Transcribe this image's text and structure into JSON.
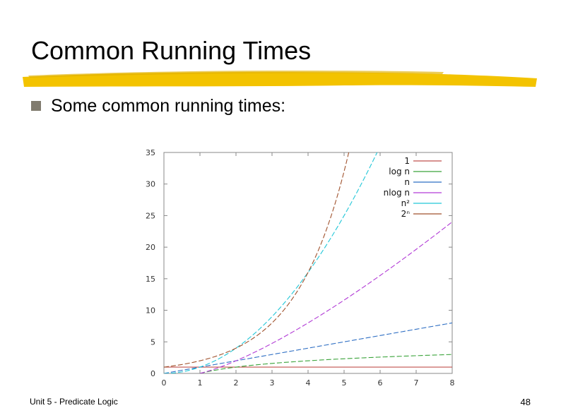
{
  "slide": {
    "title": "Common Running Times",
    "bullet": "Some common running times:",
    "footer_left": "Unit 5 - Predicate Logic",
    "page_number": "48",
    "accent_color": "#f3c300"
  },
  "chart_data": {
    "type": "line",
    "title": "",
    "xlabel": "",
    "ylabel": "",
    "xlim": [
      0,
      8
    ],
    "ylim": [
      0,
      35
    ],
    "x_ticks": [
      "0",
      "1",
      "2",
      "3",
      "4",
      "5",
      "6",
      "7",
      "8"
    ],
    "y_ticks": [
      "0",
      "5",
      "10",
      "15",
      "20",
      "25",
      "30",
      "35"
    ],
    "grid": false,
    "legend_position": "top-right",
    "series": [
      {
        "name": "1",
        "color": "#c0504d",
        "x": [
          0,
          8
        ],
        "y": [
          1,
          1
        ]
      },
      {
        "name": "log n",
        "color": "#3aa33a",
        "x": [
          1,
          2,
          3,
          4,
          5,
          6,
          7,
          8
        ],
        "y": [
          0,
          1,
          1.58,
          2,
          2.32,
          2.58,
          2.81,
          3
        ]
      },
      {
        "name": "n",
        "color": "#2f6fc4",
        "x": [
          0,
          1,
          2,
          3,
          4,
          5,
          6,
          7,
          8
        ],
        "y": [
          0,
          1,
          2,
          3,
          4,
          5,
          6,
          7,
          8
        ]
      },
      {
        "name": "nlog n",
        "color": "#b23bd6",
        "x": [
          1,
          2,
          3,
          4,
          5,
          6,
          7,
          8
        ],
        "y": [
          0,
          2,
          4.75,
          8,
          11.61,
          15.51,
          19.65,
          24
        ]
      },
      {
        "name": "n²",
        "color": "#22c7d8",
        "x": [
          0,
          1,
          2,
          3,
          4,
          5,
          6
        ],
        "y": [
          0,
          1,
          4,
          9,
          16,
          25,
          36
        ]
      },
      {
        "name": "2ⁿ",
        "color": "#a0522d",
        "x": [
          0,
          1,
          2,
          3,
          4,
          5,
          5.13
        ],
        "y": [
          1,
          2,
          4,
          8,
          16,
          32,
          35
        ]
      }
    ]
  }
}
